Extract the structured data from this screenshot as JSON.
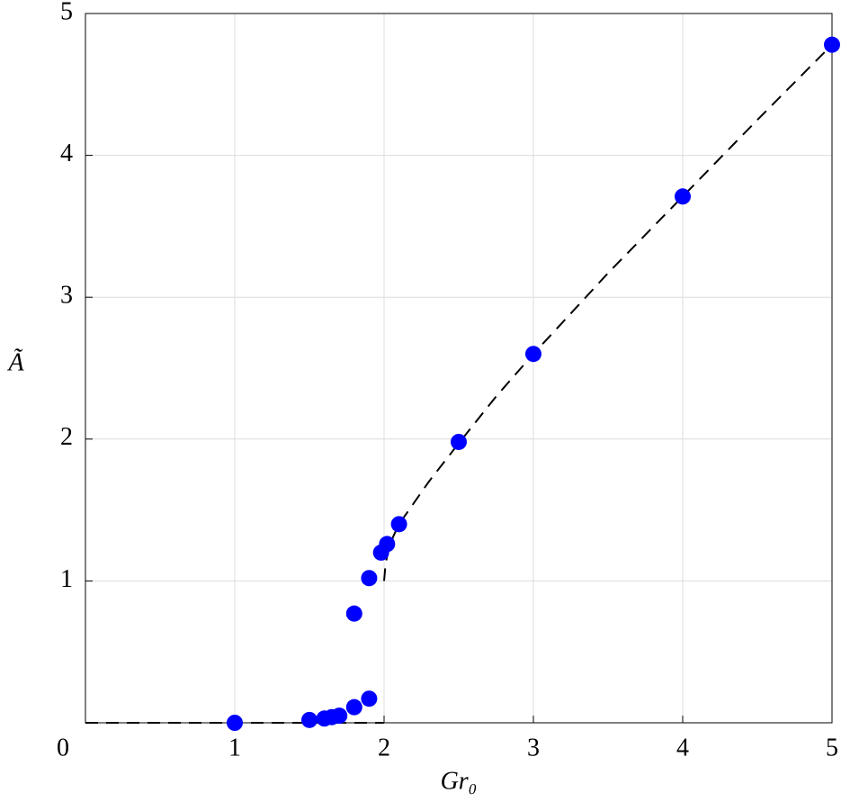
{
  "chart_data": {
    "type": "scatter",
    "xlabel": "Gr₀",
    "ylabel": "Ã",
    "xlim": [
      0,
      5
    ],
    "ylim": [
      0,
      5
    ],
    "xticks": [
      0,
      1,
      2,
      3,
      4,
      5
    ],
    "yticks": [
      1,
      2,
      3,
      4,
      5
    ],
    "grid": true,
    "series": [
      {
        "color": "#0000ff",
        "marker": "circle",
        "x": [
          1,
          1.5,
          1.6,
          1.65,
          1.7,
          1.8,
          1.9,
          1.8,
          1.9,
          1.98,
          2.02,
          2.1,
          2.5,
          3,
          4,
          5
        ],
        "values": [
          0.0,
          0.02,
          0.03,
          0.04,
          0.05,
          0.11,
          0.17,
          0.77,
          1.02,
          1.2,
          1.26,
          1.4,
          1.98,
          2.6,
          3.71,
          4.78
        ]
      },
      {
        "color": "#000000",
        "line_style": "dashed",
        "x": [
          0,
          2,
          null,
          2,
          2.01,
          2.03,
          2.06,
          2.1,
          2.2,
          2.3,
          2.5,
          2.75,
          3,
          3.5,
          4,
          4.5,
          5
        ],
        "values": [
          0,
          0,
          null,
          1.0,
          1.12,
          1.22,
          1.31,
          1.4,
          1.55,
          1.7,
          1.97,
          2.3,
          2.6,
          3.17,
          3.71,
          4.25,
          4.78
        ]
      }
    ]
  }
}
